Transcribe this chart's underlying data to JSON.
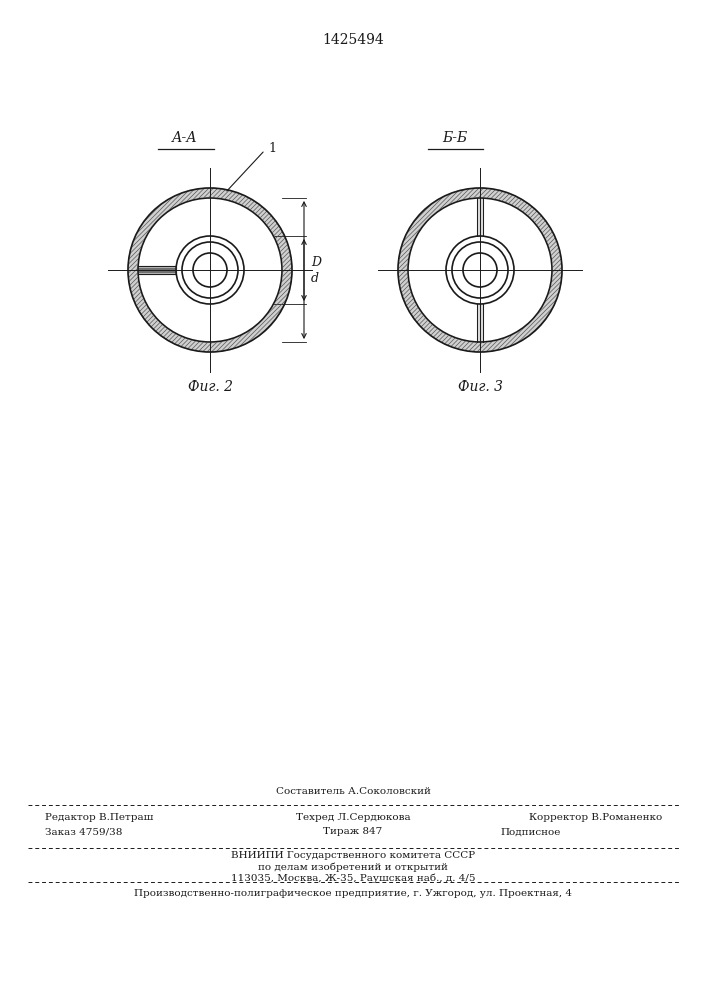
{
  "patent_number": "1425494",
  "title_aa": "А-А",
  "title_bb": "Б-Б",
  "fig2_caption": "Фиг. 2",
  "fig3_caption": "Фиг. 3",
  "line_color": "#1a1a1a",
  "footer_line1_center_top": "Составитель А.Соколовский",
  "footer_line1_left": "Редактор В.Петраш",
  "footer_line1_center": "Техред Л.Сердюкова",
  "footer_line1_right": "Корректор В.Романенко",
  "footer_line2_left": "Заказ 4759/38",
  "footer_line2_center": "Тираж 847",
  "footer_line2_right": "Подписное",
  "footer_line3": "ВНИИПИ Государственного комитета СССР",
  "footer_line4": "по делам изобретений и открытий",
  "footer_line5": "113035, Москва, Ж-35, Раушская наб., д. 4/5",
  "footer_line6": "Производственно-полиграфическое предприятие, г. Ужгород, ул. Проектная, 4"
}
